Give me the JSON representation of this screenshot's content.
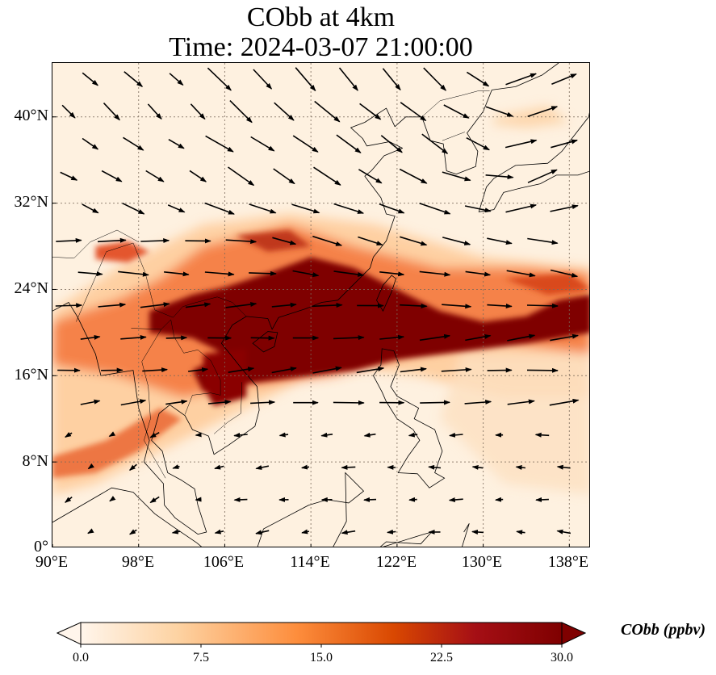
{
  "title": {
    "line1": "CObb at 4km",
    "line2": "Time: 2024-03-07 21:00:00"
  },
  "map": {
    "lon_range": [
      90,
      140
    ],
    "lat_range": [
      0,
      45
    ],
    "lat_ticks": [
      "0°",
      "8°N",
      "16°N",
      "24°N",
      "32°N",
      "40°N"
    ],
    "lon_ticks": [
      "90°E",
      "98°E",
      "106°E",
      "114°E",
      "122°E",
      "130°E",
      "138°E"
    ],
    "gridlines": true,
    "field": "CObb concentration (ppbv)",
    "features": [
      "coastlines",
      "country borders",
      "wind vectors"
    ]
  },
  "colorbar": {
    "label": "CObb (ppbv)",
    "ticks": [
      "0.0",
      "7.5",
      "15.0",
      "22.5",
      "30.0"
    ],
    "range": [
      0,
      30
    ],
    "colormap": [
      "#fff5eb",
      "#fdd3a3",
      "#fd8d3c",
      "#d94801",
      "#a50f15",
      "#7f0000"
    ],
    "extend": "both"
  }
}
